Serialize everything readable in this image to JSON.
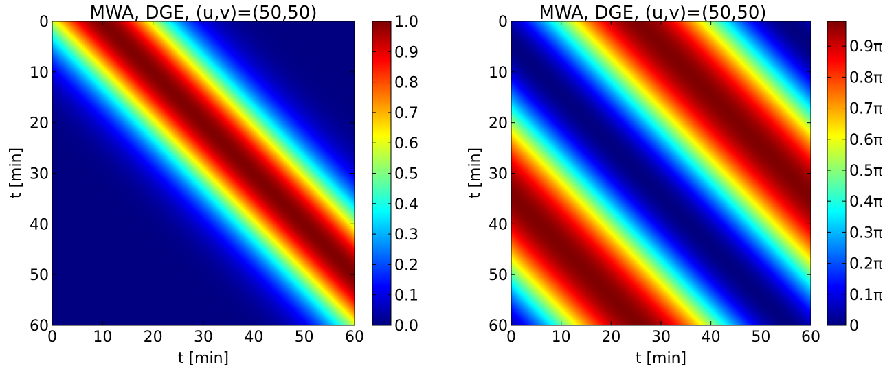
{
  "chart_data": [
    {
      "type": "heatmap",
      "title": "MWA, DGE, (u,v)=(50,50)",
      "xlabel": "t [min]",
      "ylabel": "t [min]",
      "x_ticks": [
        "0",
        "10",
        "20",
        "30",
        "40",
        "50",
        "60"
      ],
      "y_ticks": [
        "0",
        "10",
        "20",
        "30",
        "40",
        "50",
        "60"
      ],
      "xlim": [
        0,
        60
      ],
      "ylim": [
        60,
        0
      ],
      "colormap": "jet",
      "clim": [
        0,
        1
      ],
      "colorbar_ticks": [
        "0.0",
        "0.1",
        "0.2",
        "0.3",
        "0.4",
        "0.5",
        "0.6",
        "0.7",
        "0.8",
        "0.9",
        "1.0"
      ],
      "description_values": {
        "peak_offset_minutes": 10,
        "band_sigma_minutes": 9.5
      }
    },
    {
      "type": "heatmap",
      "title": "MWA, DGE, (u,v)=(50,50)",
      "xlabel": "t [min]",
      "ylabel": "t [min]",
      "x_ticks": [
        "0",
        "10",
        "20",
        "30",
        "40",
        "50",
        "60"
      ],
      "y_ticks": [
        "0",
        "10",
        "20",
        "30",
        "40",
        "50",
        "60"
      ],
      "xlim": [
        0,
        60
      ],
      "ylim": [
        60,
        0
      ],
      "colormap": "jet",
      "clim": [
        0,
        0.98
      ],
      "colorbar_ticks": [
        "0",
        "0.1π",
        "0.2π",
        "0.3π",
        "0.4π",
        "0.5π",
        "0.6π",
        "0.7π",
        "0.8π",
        "0.9π"
      ],
      "description_values": {
        "stripe_period_minutes": 60
      }
    }
  ]
}
